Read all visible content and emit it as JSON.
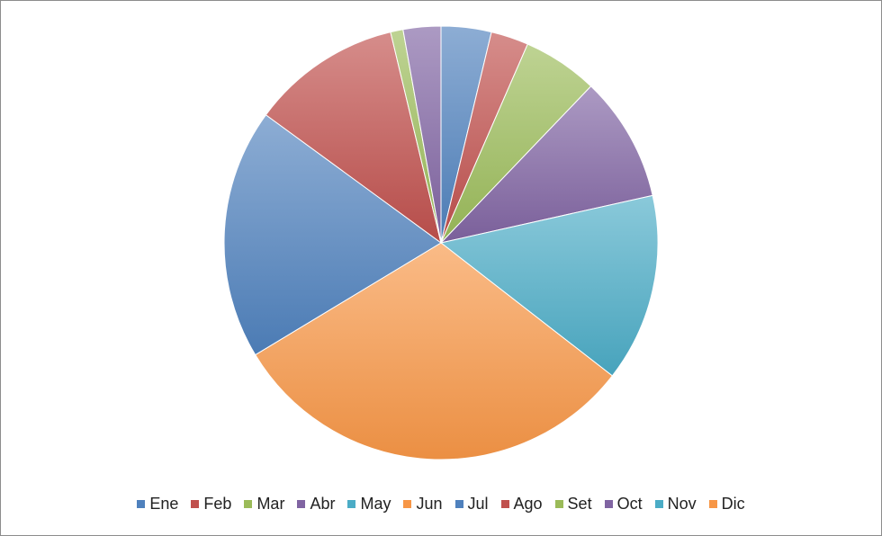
{
  "chart_data": {
    "type": "pie",
    "categories": [
      "Ene",
      "Feb",
      "Mar",
      "Abr",
      "May",
      "Jun",
      "Jul",
      "Ago",
      "Set",
      "Oct",
      "Nov",
      "Dic"
    ],
    "values": [
      4,
      3,
      6,
      10,
      15,
      33,
      20,
      12,
      1,
      3,
      0,
      0
    ],
    "colors": [
      "#4f81bd",
      "#c0504d",
      "#9bbb59",
      "#8064a2",
      "#4bacc6",
      "#f79646",
      "#4f81bd",
      "#c0504d",
      "#9bbb59",
      "#8064a2",
      "#4bacc6",
      "#f79646"
    ],
    "start_angle_deg": 0,
    "direction": "clockwise",
    "legend_position": "bottom",
    "title": "",
    "gradient": true
  }
}
